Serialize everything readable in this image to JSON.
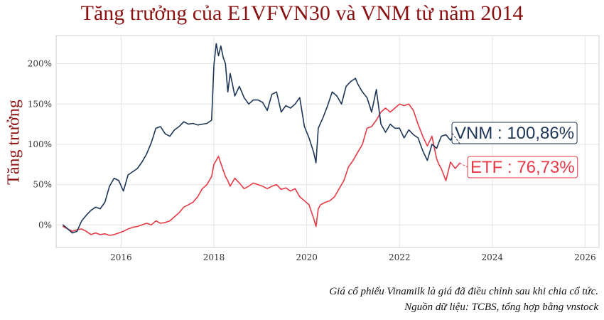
{
  "title": "Tăng trưởng của E1VFVN30 và VNM từ năm 2014",
  "footer": {
    "line1": "Giá cổ phiếu Vinamilk là giá đã điều chỉnh sau khi chia cổ tức.",
    "line2": "Nguồn dữ liệu: TCBS, tổng hợp bằng vnstock"
  },
  "colors": {
    "vnm": "#1d3557",
    "etf": "#e63946",
    "title": "#8b1111",
    "grid": "#e3e3e3"
  },
  "chart_data": {
    "type": "line",
    "title": "Tăng trưởng của E1VFVN30 và VNM từ năm 2014",
    "xlabel": "",
    "ylabel": "Tăng trưởng",
    "xlim": [
      2014.6,
      2026.3
    ],
    "ylim": [
      -28,
      235
    ],
    "x_ticks": [
      2016,
      2018,
      2020,
      2022,
      2024,
      2026
    ],
    "x_tick_labels": [
      "2016",
      "2018",
      "2020",
      "2022",
      "2024",
      "2026"
    ],
    "y_ticks": [
      0,
      50,
      100,
      150,
      200
    ],
    "y_tick_labels": [
      "0%",
      "50%",
      "100%",
      "150%",
      "200%"
    ],
    "grid": true,
    "series": [
      {
        "name": "VNM",
        "label": "VNM : 100,86%",
        "color": "#1d3557",
        "x": [
          2014.75,
          2014.85,
          2014.95,
          2015.05,
          2015.15,
          2015.25,
          2015.35,
          2015.45,
          2015.55,
          2015.65,
          2015.75,
          2015.85,
          2015.95,
          2016.05,
          2016.15,
          2016.25,
          2016.35,
          2016.45,
          2016.55,
          2016.65,
          2016.75,
          2016.85,
          2016.95,
          2017.05,
          2017.15,
          2017.25,
          2017.35,
          2017.45,
          2017.55,
          2017.65,
          2017.75,
          2017.85,
          2017.95,
          2018.0,
          2018.05,
          2018.1,
          2018.15,
          2018.2,
          2018.25,
          2018.3,
          2018.35,
          2018.4,
          2018.45,
          2018.55,
          2018.65,
          2018.75,
          2018.85,
          2018.95,
          2019.05,
          2019.15,
          2019.25,
          2019.35,
          2019.45,
          2019.55,
          2019.65,
          2019.75,
          2019.85,
          2019.95,
          2020.05,
          2020.15,
          2020.2,
          2020.25,
          2020.35,
          2020.45,
          2020.55,
          2020.65,
          2020.75,
          2020.85,
          2020.95,
          2021.05,
          2021.1,
          2021.2,
          2021.3,
          2021.4,
          2021.5,
          2021.6,
          2021.7,
          2021.8,
          2021.9,
          2022.0,
          2022.1,
          2022.2,
          2022.3,
          2022.4,
          2022.5,
          2022.6,
          2022.7,
          2022.8,
          2022.9,
          2023.0,
          2023.1,
          2023.2,
          2023.3
        ],
        "y": [
          0,
          -5,
          -10,
          -8,
          5,
          12,
          18,
          22,
          20,
          28,
          48,
          58,
          55,
          42,
          62,
          66,
          70,
          78,
          88,
          102,
          120,
          122,
          113,
          110,
          118,
          122,
          128,
          125,
          126,
          124,
          125,
          126,
          130,
          198,
          225,
          210,
          222,
          208,
          200,
          165,
          188,
          175,
          160,
          172,
          158,
          150,
          155,
          155,
          152,
          142,
          162,
          165,
          140,
          148,
          145,
          150,
          158,
          122,
          108,
          90,
          77,
          120,
          133,
          148,
          165,
          160,
          150,
          172,
          178,
          182,
          175,
          165,
          158,
          140,
          168,
          125,
          115,
          125,
          120,
          120,
          108,
          118,
          112,
          108,
          92,
          80,
          100,
          95,
          110,
          112,
          105,
          115,
          100.86
        ]
      },
      {
        "name": "ETF",
        "label": "ETF : 76,73%",
        "color": "#e63946",
        "x": [
          2014.75,
          2014.85,
          2014.95,
          2015.05,
          2015.15,
          2015.25,
          2015.35,
          2015.45,
          2015.55,
          2015.65,
          2015.75,
          2015.85,
          2015.95,
          2016.05,
          2016.15,
          2016.25,
          2016.35,
          2016.45,
          2016.55,
          2016.65,
          2016.75,
          2016.85,
          2016.95,
          2017.05,
          2017.15,
          2017.25,
          2017.35,
          2017.45,
          2017.55,
          2017.65,
          2017.75,
          2017.85,
          2017.95,
          2018.0,
          2018.1,
          2018.2,
          2018.25,
          2018.3,
          2018.35,
          2018.45,
          2018.55,
          2018.65,
          2018.75,
          2018.85,
          2018.95,
          2019.05,
          2019.15,
          2019.25,
          2019.35,
          2019.45,
          2019.55,
          2019.65,
          2019.75,
          2019.85,
          2019.95,
          2020.05,
          2020.15,
          2020.2,
          2020.25,
          2020.3,
          2020.4,
          2020.5,
          2020.6,
          2020.7,
          2020.8,
          2020.9,
          2021.0,
          2021.1,
          2021.2,
          2021.3,
          2021.4,
          2021.5,
          2021.6,
          2021.7,
          2021.8,
          2021.9,
          2022.0,
          2022.1,
          2022.2,
          2022.3,
          2022.4,
          2022.5,
          2022.6,
          2022.7,
          2022.8,
          2022.85,
          2022.9,
          2023.0,
          2023.1,
          2023.2,
          2023.3
        ],
        "y": [
          -2,
          -5,
          -8,
          -6,
          -5,
          -8,
          -12,
          -10,
          -12,
          -11,
          -13,
          -12,
          -10,
          -8,
          -5,
          -3,
          -2,
          0,
          2,
          0,
          5,
          2,
          3,
          5,
          10,
          15,
          22,
          25,
          28,
          35,
          45,
          50,
          60,
          75,
          85,
          68,
          60,
          55,
          48,
          58,
          52,
          45,
          48,
          52,
          50,
          48,
          45,
          48,
          50,
          44,
          46,
          42,
          45,
          35,
          30,
          25,
          8,
          -2,
          20,
          25,
          28,
          30,
          35,
          45,
          55,
          72,
          80,
          90,
          100,
          120,
          122,
          130,
          140,
          145,
          140,
          145,
          150,
          148,
          150,
          142,
          125,
          110,
          98,
          110,
          82,
          75,
          70,
          55,
          78,
          70,
          76.73
        ]
      }
    ]
  }
}
